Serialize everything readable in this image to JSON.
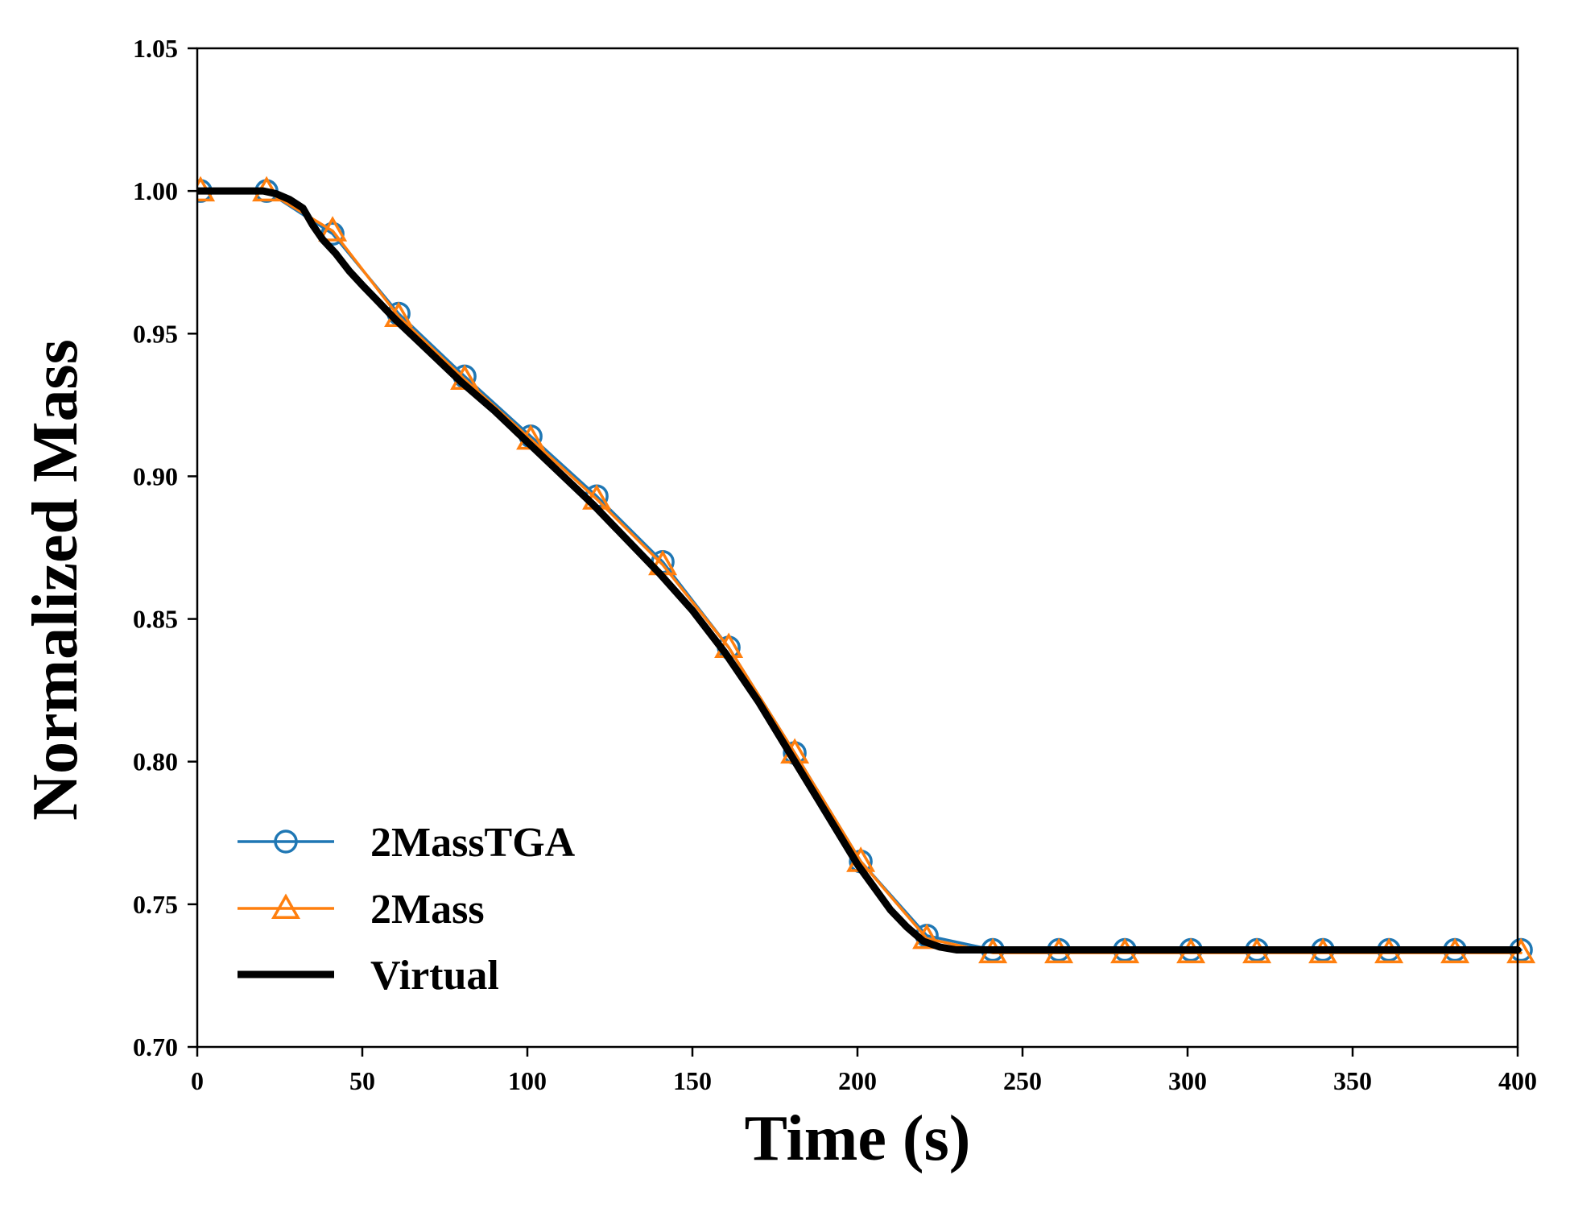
{
  "chart_data": {
    "type": "line",
    "title": "",
    "xlabel": "Time (s)",
    "ylabel": "Normalized Mass",
    "xlim": [
      0,
      400
    ],
    "ylim": [
      0.7,
      1.05
    ],
    "xticks": [
      0,
      50,
      100,
      150,
      200,
      250,
      300,
      350,
      400
    ],
    "xtick_labels": [
      "0",
      "50",
      "100",
      "150",
      "200",
      "250",
      "300",
      "350",
      "400"
    ],
    "yticks": [
      0.7,
      0.75,
      0.8,
      0.85,
      0.9,
      0.95,
      1.0,
      1.05
    ],
    "ytick_labels": [
      "0.70",
      "0.75",
      "0.80",
      "0.85",
      "0.90",
      "0.95",
      "1.00",
      "1.05"
    ],
    "grid": false,
    "legend_position": "lower-left",
    "series": [
      {
        "name": "2MassTGA",
        "color": "#1f77b4",
        "marker": "circle",
        "x": [
          1,
          21,
          41,
          61,
          81,
          101,
          121,
          141,
          161,
          181,
          201,
          221,
          241,
          261,
          281,
          301,
          321,
          341,
          361,
          381,
          401
        ],
        "y": [
          1.0,
          1.0,
          0.985,
          0.957,
          0.935,
          0.914,
          0.893,
          0.87,
          0.84,
          0.803,
          0.765,
          0.739,
          0.734,
          0.734,
          0.734,
          0.734,
          0.734,
          0.734,
          0.734,
          0.734,
          0.734
        ]
      },
      {
        "name": "2Mass",
        "color": "#ff7f0e",
        "marker": "triangle",
        "x": [
          1,
          21,
          41,
          61,
          81,
          101,
          121,
          141,
          161,
          181,
          201,
          221,
          241,
          261,
          281,
          301,
          321,
          341,
          361,
          381,
          401
        ],
        "y": [
          1.0,
          1.0,
          0.986,
          0.956,
          0.934,
          0.913,
          0.892,
          0.869,
          0.84,
          0.803,
          0.765,
          0.738,
          0.733,
          0.733,
          0.733,
          0.733,
          0.733,
          0.733,
          0.733,
          0.733,
          0.733
        ]
      },
      {
        "name": "Virtual",
        "color": "#000000",
        "marker": "none",
        "x": [
          0,
          10,
          20,
          24,
          28,
          32,
          35,
          38,
          42,
          46,
          50,
          55,
          60,
          70,
          80,
          90,
          100,
          110,
          120,
          130,
          140,
          150,
          160,
          170,
          180,
          190,
          200,
          210,
          215,
          220,
          225,
          230,
          240,
          260,
          300,
          350,
          400
        ],
        "y": [
          1.0,
          1.0,
          1.0,
          0.999,
          0.997,
          0.994,
          0.988,
          0.983,
          0.978,
          0.972,
          0.967,
          0.961,
          0.955,
          0.944,
          0.933,
          0.923,
          0.912,
          0.901,
          0.89,
          0.878,
          0.866,
          0.853,
          0.838,
          0.821,
          0.802,
          0.783,
          0.764,
          0.748,
          0.742,
          0.737,
          0.735,
          0.734,
          0.734,
          0.734,
          0.734,
          0.734,
          0.734
        ]
      }
    ]
  }
}
